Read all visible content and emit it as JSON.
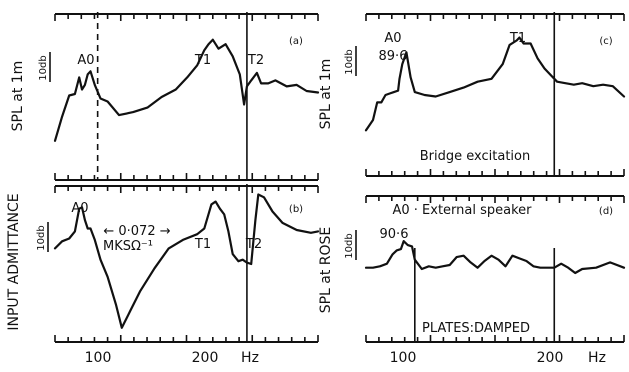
{
  "x_axis": {
    "ticks": [
      {
        "value": 100,
        "label": "100"
      },
      {
        "value": 200,
        "label": "200"
      }
    ],
    "unit": "Hz"
  },
  "chart_data": [
    {
      "type": "line",
      "panel": "(a)",
      "ylabel": "SPL at 1m",
      "scale_label": "10db",
      "xlim": [
        65,
        250
      ],
      "dashed_markers": [
        95,
        200
      ],
      "annotations": [
        {
          "text": "A0",
          "x": 88
        },
        {
          "text": "T1",
          "x": 173
        },
        {
          "text": "T2",
          "x": 205
        }
      ],
      "x": [
        65,
        70,
        75,
        79,
        82,
        84,
        86,
        88,
        90,
        93,
        97,
        102,
        110,
        120,
        130,
        140,
        150,
        158,
        165,
        170,
        173,
        176,
        180,
        185,
        190,
        195,
        198,
        200,
        203,
        207,
        210,
        215,
        220,
        228,
        235,
        242,
        250
      ],
      "y": [
        26,
        42,
        56,
        57,
        68,
        60,
        63,
        70,
        72,
        63,
        54,
        52,
        43,
        45,
        48,
        55,
        60,
        68,
        76,
        86,
        90,
        93,
        87,
        90,
        82,
        70,
        50,
        62,
        66,
        71,
        64,
        64,
        66,
        62,
        63,
        59,
        58
      ]
    },
    {
      "type": "line",
      "panel": "(b)",
      "ylabel": "INPUT ADMITTANCE",
      "scale_label": "10db",
      "xlim": [
        65,
        250
      ],
      "dashed_markers": [
        200
      ],
      "annotations": [
        {
          "text": "A0",
          "x": 85
        },
        {
          "text": "← 0·072 →",
          "x": 120
        },
        {
          "text": "MKSΩ⁻¹",
          "x": 115
        },
        {
          "text": "T1",
          "x": 176
        },
        {
          "text": "T2",
          "x": 208
        }
      ],
      "x": [
        65,
        70,
        75,
        79,
        82,
        84,
        86,
        88,
        90,
        93,
        97,
        102,
        108,
        112,
        118,
        125,
        135,
        145,
        155,
        165,
        170,
        175,
        178,
        181,
        184,
        187,
        190,
        194,
        197,
        200,
        203,
        206,
        208,
        212,
        218,
        225,
        235,
        245,
        250
      ],
      "y": [
        66,
        71,
        73,
        78,
        94,
        95,
        86,
        80,
        80,
        72,
        58,
        46,
        26,
        10,
        22,
        36,
        52,
        66,
        72,
        76,
        80,
        97,
        99,
        94,
        90,
        78,
        62,
        57,
        58,
        56,
        55,
        86,
        104,
        102,
        92,
        84,
        79,
        77,
        78
      ]
    },
    {
      "type": "line",
      "panel": "(c)",
      "ylabel": "SPL at 1m",
      "scale_label": "10db",
      "xlim": [
        65,
        250
      ],
      "dashed_markers": [
        200
      ],
      "annotations": [
        {
          "text": "A0",
          "x": 86
        },
        {
          "text": "89·6",
          "x": 86
        },
        {
          "text": "T1",
          "x": 173
        },
        {
          "text": "Bridge excitation",
          "x": 140
        }
      ],
      "x": [
        65,
        70,
        73,
        76,
        79,
        82,
        85,
        88,
        89,
        91,
        94,
        97,
        100,
        107,
        115,
        125,
        135,
        145,
        155,
        163,
        168,
        173,
        175,
        178,
        183,
        188,
        193,
        198,
        202,
        208,
        214,
        220,
        228,
        235,
        242,
        250
      ],
      "y": [
        31,
        38,
        50,
        50,
        55,
        56,
        57,
        58,
        66,
        76,
        84,
        67,
        57,
        55,
        54,
        57,
        60,
        64,
        66,
        76,
        89,
        92,
        94,
        90,
        90,
        80,
        73,
        68,
        64,
        63,
        62,
        63,
        61,
        62,
        61,
        54
      ]
    },
    {
      "type": "line",
      "panel": "(d)",
      "ylabel": "SPL at ROSE",
      "scale_label": "10db",
      "xlim": [
        65,
        250
      ],
      "dashed_markers": [],
      "annotations": [
        {
          "text": "A0 · External speaker",
          "x": 120
        },
        {
          "text": "90·6",
          "x": 85
        },
        {
          "text": "PLATES:DAMPED",
          "x": 140
        }
      ],
      "x": [
        65,
        70,
        75,
        80,
        84,
        87,
        90,
        92,
        95,
        98,
        100,
        105,
        110,
        115,
        120,
        125,
        130,
        135,
        140,
        145,
        150,
        155,
        160,
        165,
        170,
        175,
        180,
        185,
        190,
        195,
        200,
        205,
        210,
        215,
        220,
        230,
        240,
        250
      ],
      "y": [
        56,
        56,
        57,
        59,
        66,
        69,
        70,
        76,
        73,
        72,
        62,
        55,
        57,
        56,
        57,
        58,
        64,
        65,
        60,
        56,
        61,
        65,
        62,
        57,
        65,
        63,
        61,
        57,
        56,
        56,
        56,
        59,
        56,
        52,
        55,
        56,
        60,
        56
      ]
    }
  ]
}
